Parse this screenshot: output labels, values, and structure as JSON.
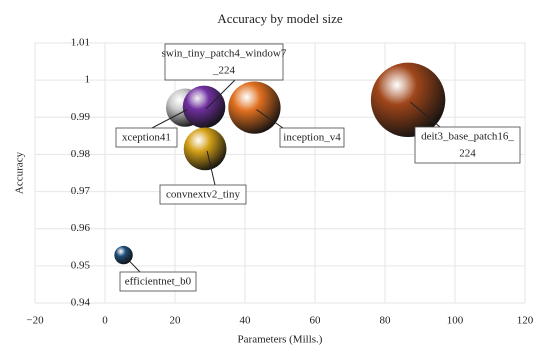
{
  "chart_data": {
    "type": "bubble",
    "title": "Accuracy by model size",
    "x_label": "Parameters (Mills.)",
    "y_label": "Accuracy",
    "x": [
      5.3,
      22.9,
      28.3,
      28.6,
      42.7,
      86.6
    ],
    "values": [
      0.9529,
      0.9926,
      0.9928,
      0.9815,
      0.9926,
      0.9947
    ],
    "labels": [
      [
        "efficientnet_b0"
      ],
      [
        "xception41"
      ],
      [
        "swin_tiny_patch4_window7",
        "_224"
      ],
      [
        "convnextv2_tiny"
      ],
      [
        "inception_v4"
      ],
      [
        "deit3_base_patch16_",
        "224"
      ]
    ],
    "colors": [
      "#1f4e79",
      "#c8c8c8",
      "#7030a0",
      "#d4a017",
      "#e07020",
      "#a0461a"
    ],
    "xlim": [
      -20,
      120
    ],
    "ylim": [
      0.94,
      1.01
    ],
    "xticks": [
      {
        "value": -20,
        "label": "−20"
      },
      0,
      20,
      40,
      60,
      80,
      100,
      120
    ],
    "yticks": [
      0.94,
      0.95,
      0.96,
      0.97,
      0.98,
      0.99,
      1,
      1.01
    ],
    "grid": true
  }
}
